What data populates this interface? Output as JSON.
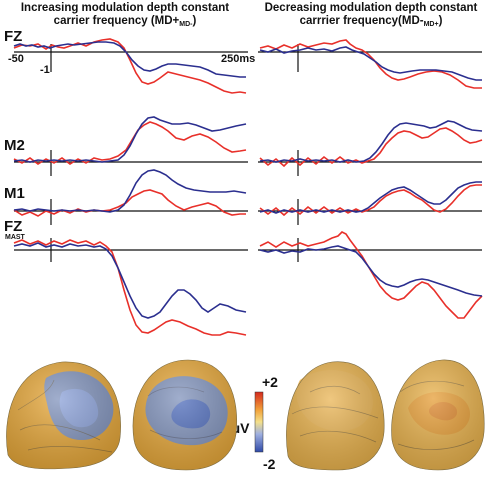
{
  "titles": {
    "left": {
      "line1": "Increasing modulation depth constant",
      "line2_prefix": "carrier frequency (MD+",
      "line2_sub": "MD-",
      "line2_suffix": ")"
    },
    "right": {
      "line1": "Decreasing modulation depth constant",
      "line2_prefix": "carrrier frequency(MD-",
      "line2_sub": "MD+",
      "line2_suffix": ")"
    }
  },
  "channels": {
    "fz": "FZ",
    "m2": "M2",
    "m1": "M1",
    "fzmast_main": "FZ",
    "fzmast_sub": "MAST"
  },
  "axis": {
    "start_label": "-50",
    "zero_label": "-1",
    "end_label": "250ms"
  },
  "colorbar": {
    "max_label": "+2",
    "unit": "µV",
    "min_label": "-2",
    "colors": [
      "#d42a1e",
      "#f2a23b",
      "#f4e08a",
      "#9fb0e0",
      "#2f4aa8"
    ]
  },
  "series_colors": {
    "red": "#e8302a",
    "blue": "#2b2f8f"
  },
  "heads": [
    {
      "name": "head-left-back",
      "base": "#e7a83a",
      "blob": "#6f8fd4"
    },
    {
      "name": "head-left-top",
      "base": "#e7a83a",
      "blob": "#6f8fd4"
    },
    {
      "name": "head-right-back",
      "base": "#e9b24c",
      "blob": "#eab556"
    },
    {
      "name": "head-right-top",
      "base": "#e9b24c",
      "blob": "#e59a34"
    }
  ]
}
